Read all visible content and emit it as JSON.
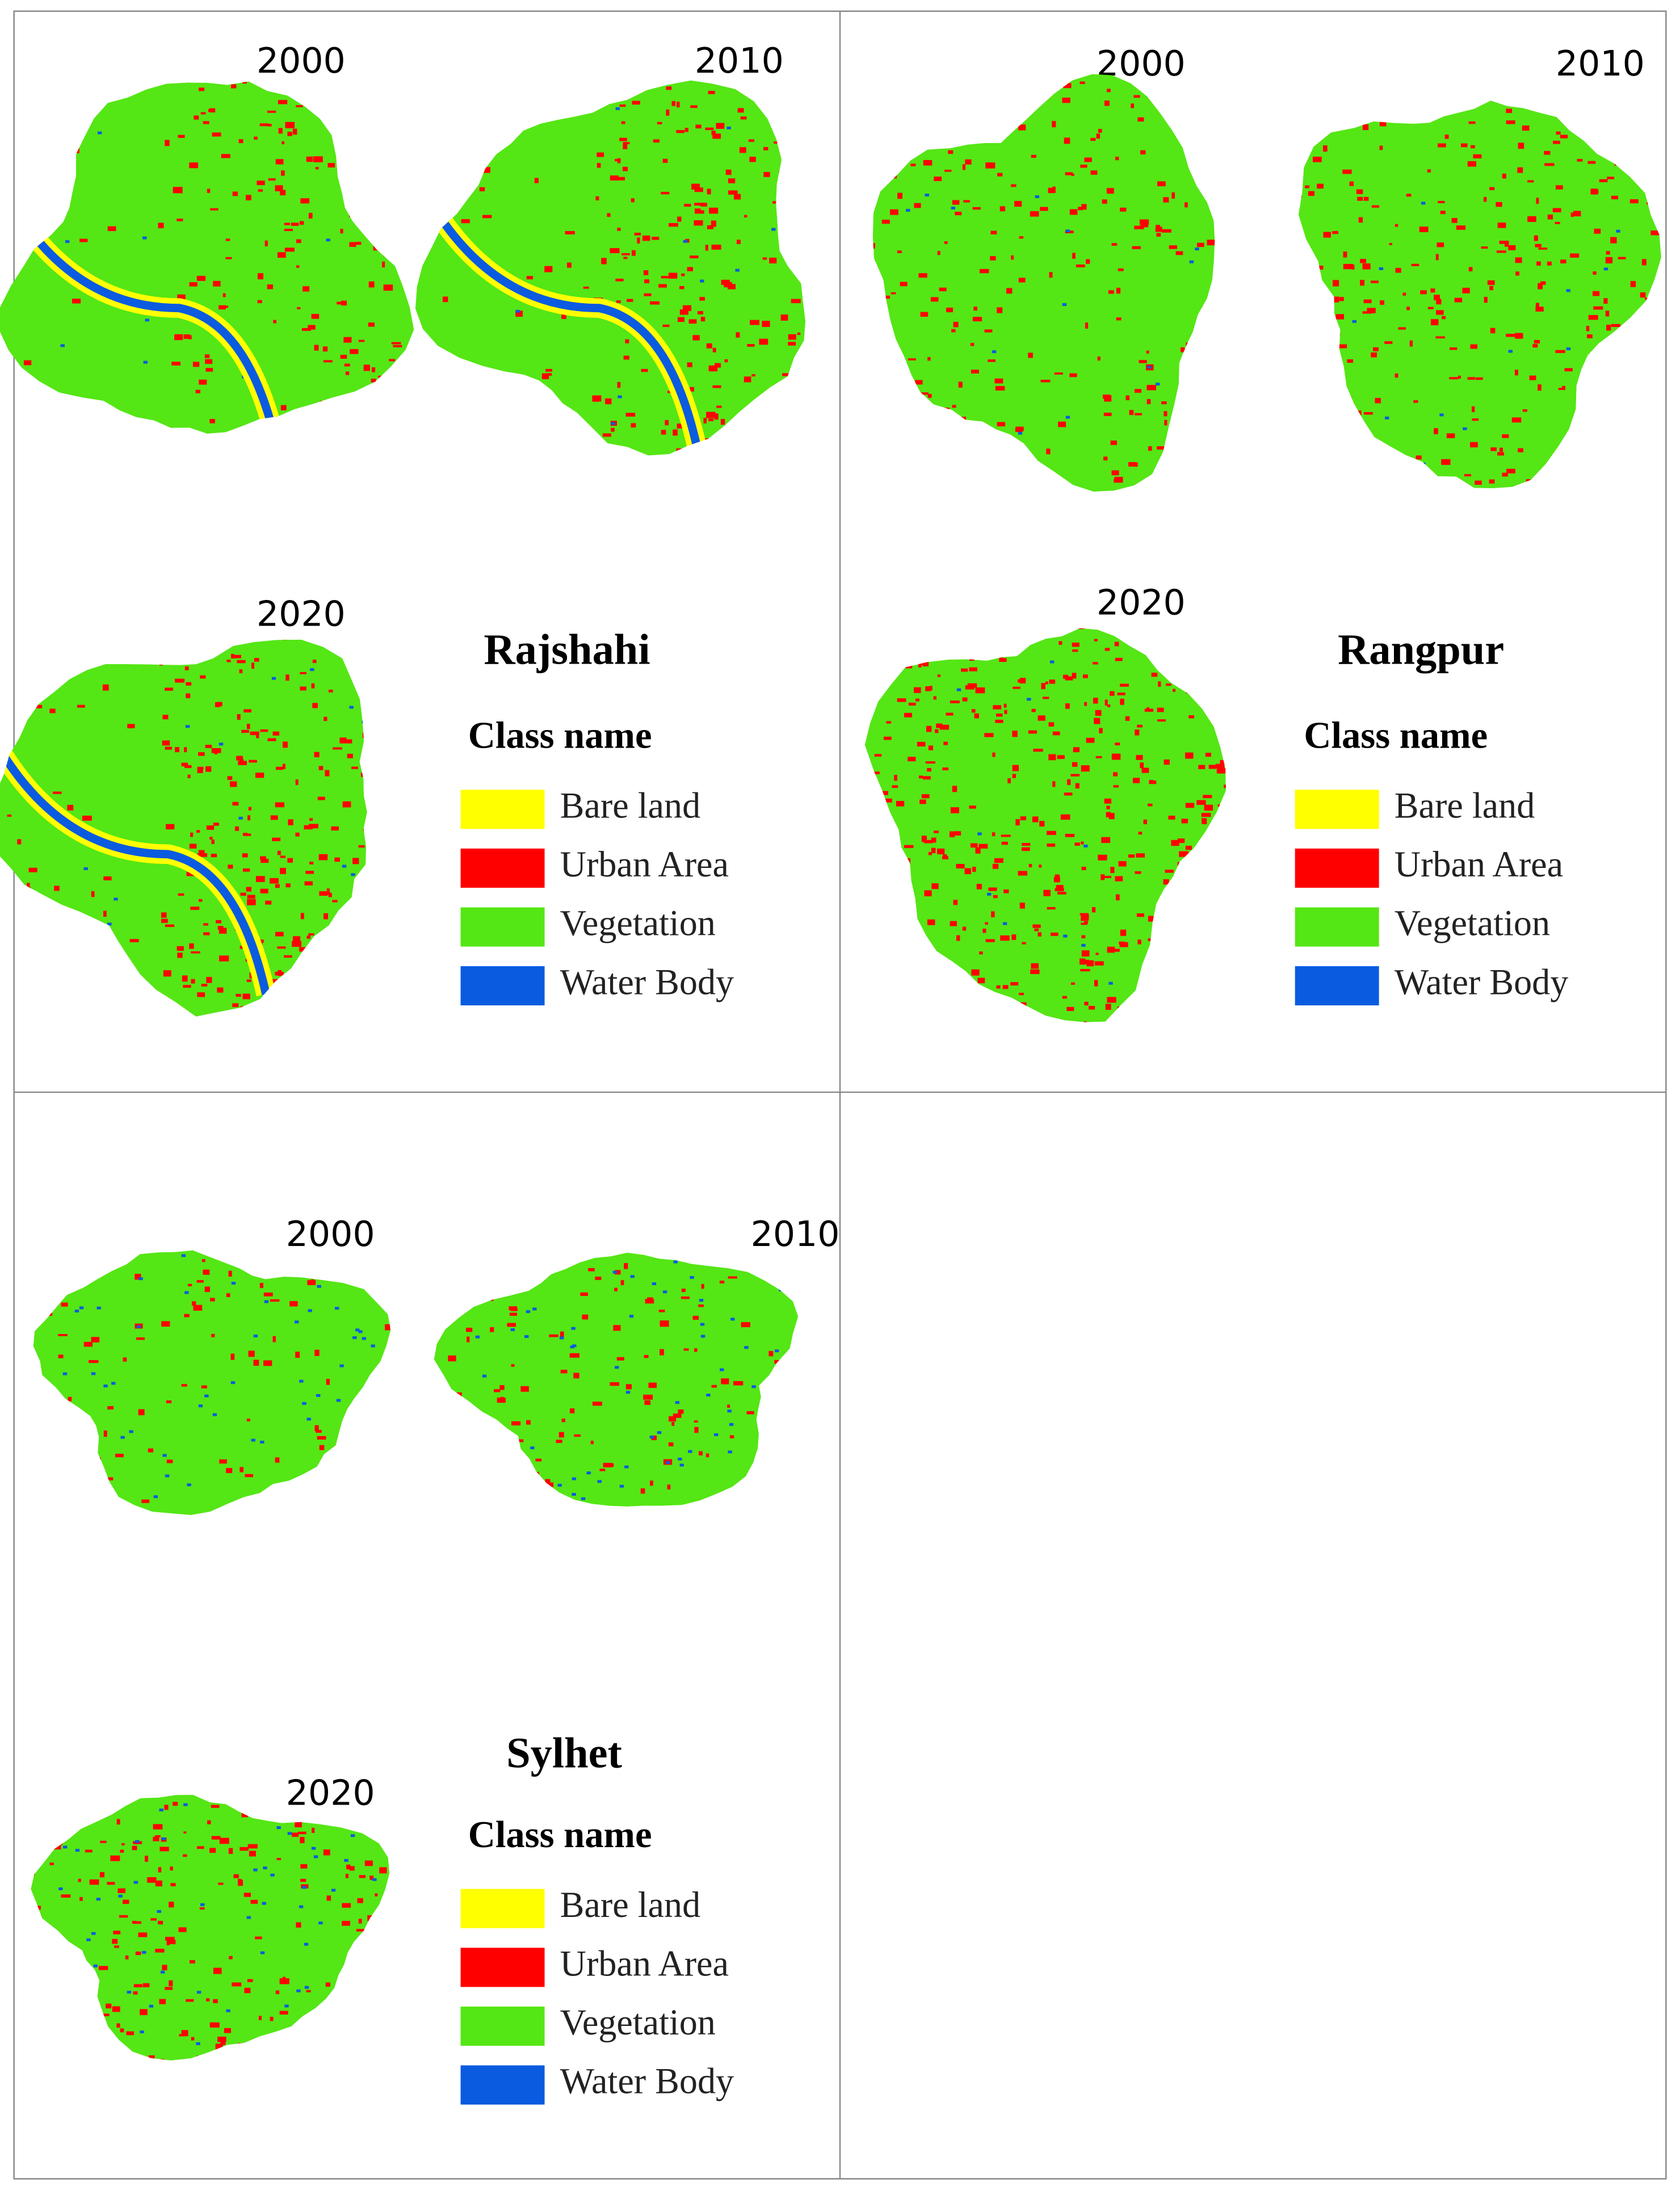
{
  "panels": [
    {
      "title": "Rajshahi",
      "years": [
        "2000",
        "2010",
        "2020"
      ],
      "legend": {
        "heading": "Class name",
        "items": [
          {
            "label": "Bare land",
            "color": "#ffff00"
          },
          {
            "label": "Urban Area",
            "color": "#ff0000"
          },
          {
            "label": "Vegetation",
            "color": "#55e615"
          },
          {
            "label": "Water Body",
            "color": "#0a5be0"
          }
        ]
      }
    },
    {
      "title": "Rangpur",
      "years": [
        "2000",
        "2010",
        "2020"
      ],
      "legend": {
        "heading": "Class name",
        "items": [
          {
            "label": "Bare land",
            "color": "#ffff00"
          },
          {
            "label": "Urban Area",
            "color": "#ff0000"
          },
          {
            "label": "Vegetation",
            "color": "#55e615"
          },
          {
            "label": "Water Body",
            "color": "#0a5be0"
          }
        ]
      }
    },
    {
      "title": "Sylhet",
      "years": [
        "2000",
        "2010",
        "2020"
      ],
      "legend": {
        "heading": "Class name",
        "items": [
          {
            "label": "Bare land",
            "color": "#ffff00"
          },
          {
            "label": "Urban Area",
            "color": "#ff0000"
          },
          {
            "label": "Vegetation",
            "color": "#55e615"
          },
          {
            "label": "Water Body",
            "color": "#0a5be0"
          }
        ]
      }
    }
  ]
}
